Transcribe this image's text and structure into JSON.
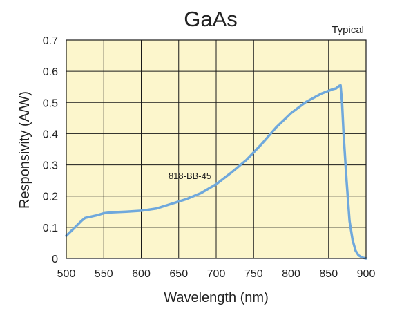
{
  "chart_data": {
    "type": "line",
    "title": "GaAs",
    "subtitle": "Typical",
    "xlabel": "Wavelength (nm)",
    "ylabel": "Responsivity (A/W)",
    "xlim": [
      500,
      900
    ],
    "ylim": [
      0,
      0.7
    ],
    "xticks": [
      "500",
      "550",
      "600",
      "650",
      "700",
      "750",
      "800",
      "850",
      "900"
    ],
    "yticks": [
      "0",
      "0.1",
      "0.2",
      "0.3",
      "0.4",
      "0.5",
      "0.6",
      "0.7"
    ],
    "grid": true,
    "background_color": "#fcf6cc",
    "grid_color": "#1a1a1a",
    "series": [
      {
        "color": "#6fa8dc",
        "x": [
          500,
          510,
          520,
          525,
          540,
          550,
          560,
          580,
          600,
          620,
          640,
          660,
          680,
          700,
          720,
          740,
          760,
          780,
          800,
          820,
          840,
          855,
          860,
          864,
          866,
          868,
          870,
          874,
          878,
          882,
          886,
          890,
          895,
          900
        ],
        "y": [
          0.073,
          0.096,
          0.12,
          0.13,
          0.138,
          0.145,
          0.148,
          0.15,
          0.153,
          0.16,
          0.175,
          0.19,
          0.21,
          0.238,
          0.275,
          0.315,
          0.365,
          0.42,
          0.466,
          0.502,
          0.528,
          0.542,
          0.545,
          0.553,
          0.555,
          0.5,
          0.4,
          0.25,
          0.12,
          0.06,
          0.025,
          0.01,
          0.003,
          0.0
        ]
      }
    ],
    "annotations": [
      {
        "text": "818-BB-45",
        "x": 665,
        "y": 0.255
      }
    ]
  }
}
